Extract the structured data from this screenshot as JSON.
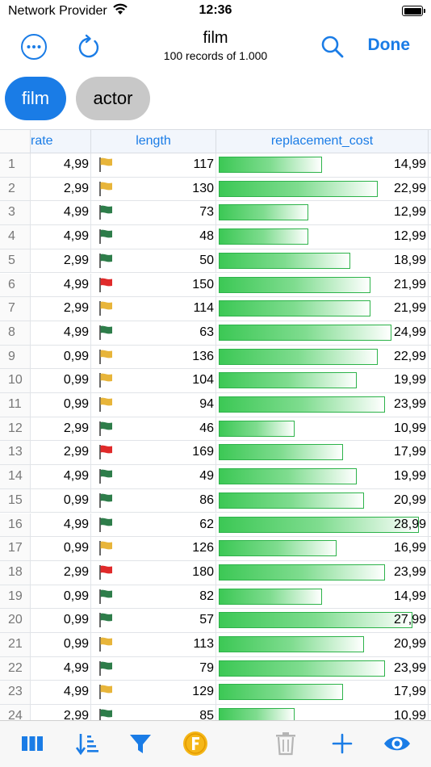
{
  "status": {
    "carrier": "Network Provider",
    "time": "12:36"
  },
  "nav": {
    "title": "film",
    "subtitle": "100 records of 1.000",
    "done": "Done"
  },
  "chips": [
    "film",
    "actor"
  ],
  "columns": [
    "rate",
    "length",
    "replacement_cost"
  ],
  "cost_max": 30,
  "rows": [
    {
      "idx": "1",
      "rate": "4,99",
      "flag": "yellow",
      "length": "117",
      "cost": "14,99"
    },
    {
      "idx": "2",
      "rate": "2,99",
      "flag": "yellow",
      "length": "130",
      "cost": "22,99"
    },
    {
      "idx": "3",
      "rate": "4,99",
      "flag": "green",
      "length": "73",
      "cost": "12,99"
    },
    {
      "idx": "4",
      "rate": "4,99",
      "flag": "green",
      "length": "48",
      "cost": "12,99"
    },
    {
      "idx": "5",
      "rate": "2,99",
      "flag": "green",
      "length": "50",
      "cost": "18,99"
    },
    {
      "idx": "6",
      "rate": "4,99",
      "flag": "red",
      "length": "150",
      "cost": "21,99"
    },
    {
      "idx": "7",
      "rate": "2,99",
      "flag": "yellow",
      "length": "114",
      "cost": "21,99"
    },
    {
      "idx": "8",
      "rate": "4,99",
      "flag": "green",
      "length": "63",
      "cost": "24,99"
    },
    {
      "idx": "9",
      "rate": "0,99",
      "flag": "yellow",
      "length": "136",
      "cost": "22,99"
    },
    {
      "idx": "10",
      "rate": "0,99",
      "flag": "yellow",
      "length": "104",
      "cost": "19,99"
    },
    {
      "idx": "11",
      "rate": "0,99",
      "flag": "yellow",
      "length": "94",
      "cost": "23,99"
    },
    {
      "idx": "12",
      "rate": "2,99",
      "flag": "green",
      "length": "46",
      "cost": "10,99"
    },
    {
      "idx": "13",
      "rate": "2,99",
      "flag": "red",
      "length": "169",
      "cost": "17,99"
    },
    {
      "idx": "14",
      "rate": "4,99",
      "flag": "green",
      "length": "49",
      "cost": "19,99"
    },
    {
      "idx": "15",
      "rate": "0,99",
      "flag": "green",
      "length": "86",
      "cost": "20,99"
    },
    {
      "idx": "16",
      "rate": "4,99",
      "flag": "green",
      "length": "62",
      "cost": "28,99"
    },
    {
      "idx": "17",
      "rate": "0,99",
      "flag": "yellow",
      "length": "126",
      "cost": "16,99"
    },
    {
      "idx": "18",
      "rate": "2,99",
      "flag": "red",
      "length": "180",
      "cost": "23,99"
    },
    {
      "idx": "19",
      "rate": "0,99",
      "flag": "green",
      "length": "82",
      "cost": "14,99"
    },
    {
      "idx": "20",
      "rate": "0,99",
      "flag": "green",
      "length": "57",
      "cost": "27,99"
    },
    {
      "idx": "21",
      "rate": "0,99",
      "flag": "yellow",
      "length": "113",
      "cost": "20,99"
    },
    {
      "idx": "22",
      "rate": "4,99",
      "flag": "green",
      "length": "79",
      "cost": "23,99"
    },
    {
      "idx": "23",
      "rate": "4,99",
      "flag": "yellow",
      "length": "129",
      "cost": "17,99"
    },
    {
      "idx": "24",
      "rate": "2,99",
      "flag": "green",
      "length": "85",
      "cost": "10,99"
    }
  ],
  "flag_colors": {
    "yellow": "#e8b53a",
    "green": "#2e7d4a",
    "red": "#e02a2a"
  },
  "accent": "#1a7ce6",
  "toolbar": [
    "columns-icon",
    "sort-icon",
    "filter-icon",
    "formula-icon",
    "trash-icon",
    "add-icon",
    "eye-icon"
  ]
}
